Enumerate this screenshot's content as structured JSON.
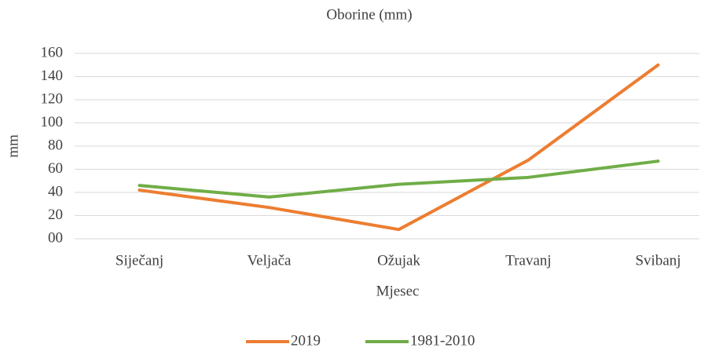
{
  "chart_data": {
    "type": "line",
    "title": "Oborine (mm)",
    "xlabel": "Mjesec",
    "ylabel": "mm",
    "categories": [
      "Siječanj",
      "Veljača",
      "Ožujak",
      "Travanj",
      "Svibanj"
    ],
    "series": [
      {
        "name": "2019",
        "color": "#ed7d31",
        "values": [
          42,
          27,
          8,
          68,
          150
        ]
      },
      {
        "name": "1981-2010",
        "color": "#70ad47",
        "values": [
          46,
          36,
          47,
          53,
          67
        ]
      }
    ],
    "ylim": [
      0,
      160
    ],
    "yticks": [
      {
        "value": 0,
        "label": "00"
      },
      20,
      40,
      60,
      80,
      100,
      120,
      140,
      160
    ],
    "grid": true,
    "legend": "bottom"
  }
}
